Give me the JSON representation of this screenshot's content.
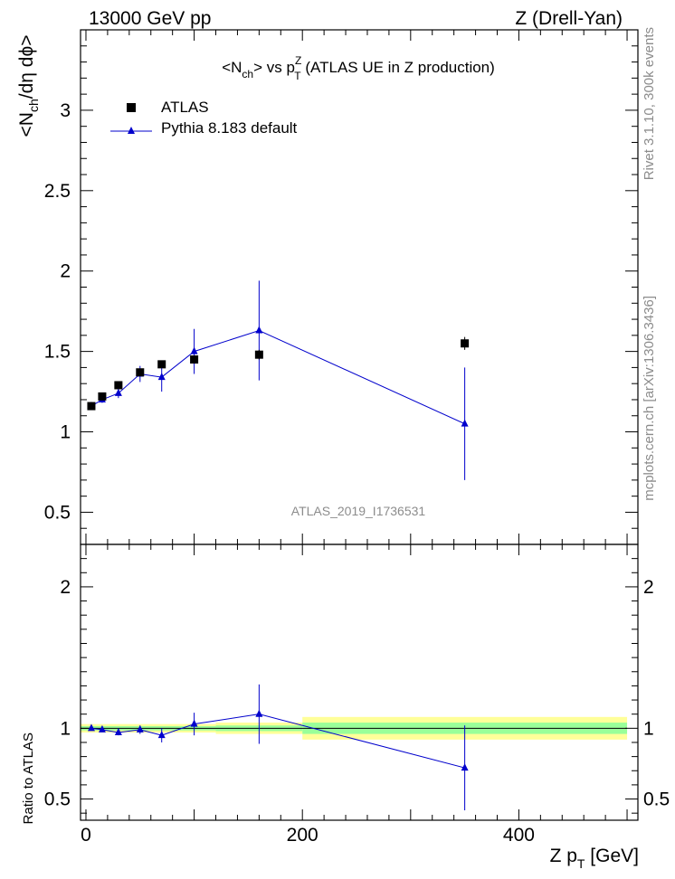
{
  "header": {
    "left": "13000 GeV pp",
    "right": "Z (Drell-Yan)"
  },
  "side": {
    "rivet": "Rivet 3.1.10,  300k events",
    "mcplots": "mcplots.cern.ch [arXiv:1306.3436]"
  },
  "watermark": "ATLAS_2019_I1736531",
  "colors": {
    "data": "#000000",
    "mc": "#0000cc",
    "band_inner": "#99ff99",
    "band_outer": "#ffff99"
  },
  "chart_data": [
    {
      "type": "scatter",
      "title": {
        "prefix": "<N",
        "prefix_sub": "ch",
        "middle": "> vs p",
        "var_sup": "Z",
        "var_sub": "T",
        "suffix": " (ATLAS UE in Z production)"
      },
      "ylabel": {
        "a": "<N",
        "a_sub": "ch",
        "b": "/dη dϕ>"
      },
      "xlim": [
        -5,
        510
      ],
      "ylim": [
        0.3,
        3.5
      ],
      "yticks": [
        0.5,
        1,
        1.5,
        2,
        2.5,
        3
      ],
      "ytick_labels": [
        "0.5",
        "1",
        "1.5",
        "2",
        "2.5",
        "3"
      ],
      "legend_position": "top-left",
      "series": [
        {
          "name": "ATLAS",
          "marker": "square",
          "x": [
            5,
            15,
            30,
            50,
            70,
            100,
            160,
            350
          ],
          "y": [
            1.16,
            1.22,
            1.29,
            1.37,
            1.42,
            1.45,
            1.48,
            1.55
          ],
          "yerr": [
            0.01,
            0.01,
            0.01,
            0.01,
            0.01,
            0.02,
            0.03,
            0.04
          ]
        },
        {
          "name": "Pythia 8.183 default",
          "marker": "triangle",
          "x": [
            5,
            15,
            30,
            50,
            70,
            100,
            160,
            350
          ],
          "y": [
            1.16,
            1.2,
            1.24,
            1.36,
            1.34,
            1.5,
            1.63,
            1.05
          ],
          "yerr": [
            0.01,
            0.02,
            0.03,
            0.05,
            0.09,
            0.14,
            0.31,
            0.35
          ]
        }
      ]
    },
    {
      "type": "scatter",
      "ylabel": "Ratio to ATLAS",
      "xlabel": {
        "main": "Z p",
        "sub": "T",
        "unit": " [GeV]"
      },
      "xlim": [
        -5,
        510
      ],
      "ylim": [
        0.35,
        2.3
      ],
      "xticks": [
        0,
        200,
        400
      ],
      "xtick_labels": [
        "0",
        "200",
        "400"
      ],
      "yticks": [
        0.5,
        1,
        2
      ],
      "ytick_labels": [
        "0.5",
        "1",
        "2"
      ],
      "bands": [
        {
          "x0": -5,
          "x1": 120,
          "inner": [
            0.985,
            1.015
          ],
          "outer": [
            0.97,
            1.03
          ]
        },
        {
          "x0": 120,
          "x1": 200,
          "inner": [
            0.98,
            1.02
          ],
          "outer": [
            0.96,
            1.04
          ]
        },
        {
          "x0": 200,
          "x1": 500,
          "inner": [
            0.96,
            1.04
          ],
          "outer": [
            0.92,
            1.08
          ]
        }
      ],
      "series": [
        {
          "name": "Pythia 8.183 default",
          "x": [
            5,
            15,
            30,
            50,
            70,
            100,
            160,
            350
          ],
          "y": [
            1.0,
            0.99,
            0.97,
            0.99,
            0.95,
            1.03,
            1.1,
            0.72
          ],
          "yerr": [
            0.01,
            0.015,
            0.02,
            0.03,
            0.05,
            0.08,
            0.21,
            0.3
          ]
        }
      ]
    }
  ]
}
